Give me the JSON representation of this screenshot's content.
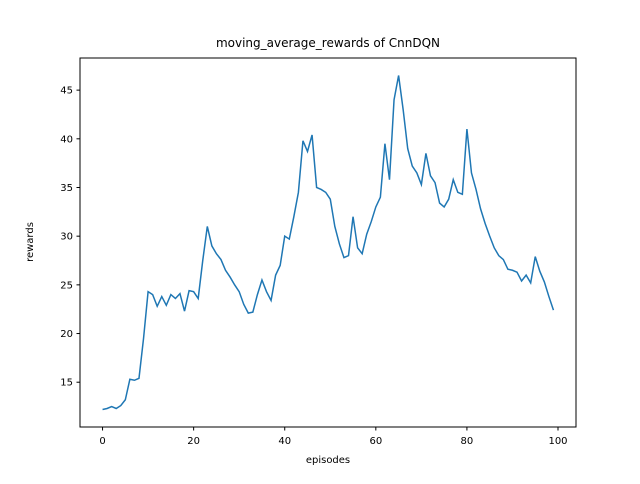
{
  "figure": {
    "background": "#ffffff"
  },
  "chart_data": {
    "type": "line",
    "title": "moving_average_rewards of CnnDQN",
    "xlabel": "episodes",
    "ylabel": "rewards",
    "legend": "none",
    "grid": false,
    "line_color": "#1f77b4",
    "axes_color": "#000000",
    "xlim": [
      -4.95,
      103.95
    ],
    "ylim": [
      10.4,
      48.3
    ],
    "xticks": [
      0,
      20,
      40,
      60,
      80,
      100
    ],
    "yticks": [
      15,
      20,
      25,
      30,
      35,
      40,
      45
    ],
    "x": [
      0,
      1,
      2,
      3,
      4,
      5,
      6,
      7,
      8,
      9,
      10,
      11,
      12,
      13,
      14,
      15,
      16,
      17,
      18,
      19,
      20,
      21,
      22,
      23,
      24,
      25,
      26,
      27,
      28,
      29,
      30,
      31,
      32,
      33,
      34,
      35,
      36,
      37,
      38,
      39,
      40,
      41,
      42,
      43,
      44,
      45,
      46,
      47,
      48,
      49,
      50,
      51,
      52,
      53,
      54,
      55,
      56,
      57,
      58,
      59,
      60,
      61,
      62,
      63,
      64,
      65,
      66,
      67,
      68,
      69,
      70,
      71,
      72,
      73,
      74,
      75,
      76,
      77,
      78,
      79,
      80,
      81,
      82,
      83,
      84,
      85,
      86,
      87,
      88,
      89,
      90,
      91,
      92,
      93,
      94,
      95,
      96,
      97,
      98,
      99
    ],
    "y": [
      12.2,
      12.3,
      12.5,
      12.3,
      12.6,
      13.2,
      15.3,
      15.2,
      15.4,
      19.5,
      24.3,
      24.0,
      22.8,
      23.8,
      22.9,
      24.0,
      23.6,
      24.1,
      22.3,
      24.4,
      24.3,
      23.6,
      27.5,
      31.0,
      29.0,
      28.2,
      27.6,
      26.5,
      25.8,
      25.0,
      24.3,
      23.0,
      22.1,
      22.2,
      24.0,
      25.5,
      24.3,
      23.4,
      26.0,
      27.0,
      30.0,
      29.7,
      32.0,
      34.5,
      39.8,
      38.7,
      40.4,
      35.0,
      34.8,
      34.5,
      33.8,
      31.0,
      29.2,
      27.8,
      28.0,
      32.0,
      28.8,
      28.2,
      30.2,
      31.5,
      33.0,
      34.0,
      39.5,
      35.8,
      44.0,
      46.5,
      43.0,
      39.0,
      37.2,
      36.5,
      35.3,
      38.5,
      36.2,
      35.5,
      33.4,
      33.0,
      33.8,
      35.8,
      34.5,
      34.3,
      41.0,
      36.5,
      34.8,
      32.8,
      31.3,
      30.0,
      28.8,
      28.0,
      27.6,
      26.6,
      26.5,
      26.3,
      25.4,
      26.0,
      25.2,
      27.9,
      26.4,
      25.3,
      23.8,
      22.4
    ]
  }
}
